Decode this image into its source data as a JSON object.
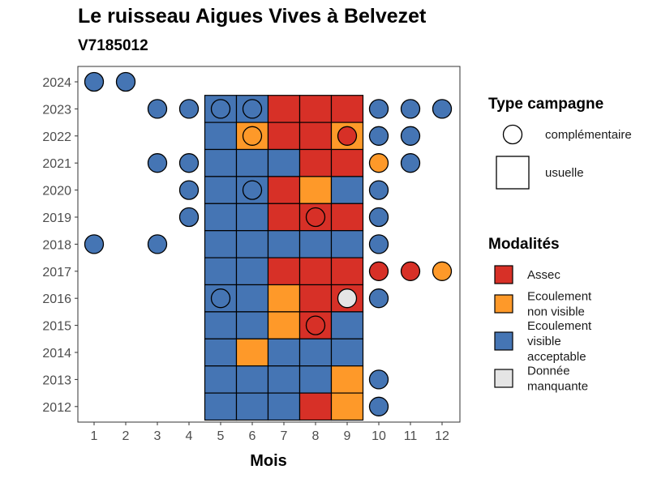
{
  "chart_data": {
    "type": "heatmap",
    "title": "Le ruisseau Aigues Vives à Belvezet",
    "subtitle": "V7185012",
    "xlabel": "Mois",
    "ylabel": "",
    "x_ticks": [
      "1",
      "2",
      "3",
      "4",
      "5",
      "6",
      "7",
      "8",
      "9",
      "10",
      "11",
      "12"
    ],
    "y_ticks": [
      "2012",
      "2013",
      "2014",
      "2015",
      "2016",
      "2017",
      "2018",
      "2019",
      "2020",
      "2021",
      "2022",
      "2023",
      "2024"
    ],
    "colors": {
      "Assec": "#d73027",
      "Ecoulement non visible": "#fe9929",
      "Ecoulement visible acceptable": "#4575b4",
      "Donnée manquante": "#e5e5e5"
    },
    "legend_type": {
      "title": "Type campagne",
      "items": [
        {
          "key": "complementaire",
          "label": "complémentaire",
          "shape": "circle"
        },
        {
          "key": "usuelle",
          "label": "usuelle",
          "shape": "square"
        }
      ]
    },
    "legend_modalites": {
      "title": "Modalités",
      "items": [
        {
          "key": "Assec",
          "lines": [
            "Assec"
          ]
        },
        {
          "key": "Ecoulement non visible",
          "lines": [
            "Ecoulement",
            "non visible"
          ]
        },
        {
          "key": "Ecoulement visible acceptable",
          "lines": [
            "Ecoulement",
            "visible",
            "acceptable"
          ]
        },
        {
          "key": "Donnée manquante",
          "lines": [
            "Donnée",
            "manquante"
          ]
        }
      ]
    },
    "usuelle": [
      {
        "year": 2023,
        "months": {
          "5": "Ecoulement visible acceptable",
          "6": "Ecoulement visible acceptable",
          "7": "Assec",
          "8": "Assec",
          "9": "Assec"
        }
      },
      {
        "year": 2022,
        "months": {
          "5": "Ecoulement visible acceptable",
          "6": "Ecoulement non visible",
          "7": "Assec",
          "8": "Assec",
          "9": "Ecoulement non visible"
        }
      },
      {
        "year": 2021,
        "months": {
          "5": "Ecoulement visible acceptable",
          "6": "Ecoulement visible acceptable",
          "7": "Ecoulement visible acceptable",
          "8": "Assec",
          "9": "Assec"
        }
      },
      {
        "year": 2020,
        "months": {
          "5": "Ecoulement visible acceptable",
          "6": "Ecoulement visible acceptable",
          "7": "Assec",
          "8": "Ecoulement non visible",
          "9": "Ecoulement visible acceptable"
        }
      },
      {
        "year": 2019,
        "months": {
          "5": "Ecoulement visible acceptable",
          "6": "Ecoulement visible acceptable",
          "7": "Assec",
          "8": "Assec",
          "9": "Assec"
        }
      },
      {
        "year": 2018,
        "months": {
          "5": "Ecoulement visible acceptable",
          "6": "Ecoulement visible acceptable",
          "7": "Ecoulement visible acceptable",
          "8": "Ecoulement visible acceptable",
          "9": "Ecoulement visible acceptable"
        }
      },
      {
        "year": 2017,
        "months": {
          "5": "Ecoulement visible acceptable",
          "6": "Ecoulement visible acceptable",
          "7": "Assec",
          "8": "Assec",
          "9": "Assec"
        }
      },
      {
        "year": 2016,
        "months": {
          "5": "Ecoulement visible acceptable",
          "6": "Ecoulement visible acceptable",
          "7": "Ecoulement non visible",
          "8": "Assec",
          "9": "Assec"
        }
      },
      {
        "year": 2015,
        "months": {
          "5": "Ecoulement visible acceptable",
          "6": "Ecoulement visible acceptable",
          "7": "Ecoulement non visible",
          "8": "Assec",
          "9": "Ecoulement visible acceptable"
        }
      },
      {
        "year": 2014,
        "months": {
          "5": "Ecoulement visible acceptable",
          "6": "Ecoulement non visible",
          "7": "Ecoulement visible acceptable",
          "8": "Ecoulement visible acceptable",
          "9": "Ecoulement visible acceptable"
        }
      },
      {
        "year": 2013,
        "months": {
          "5": "Ecoulement visible acceptable",
          "6": "Ecoulement visible acceptable",
          "7": "Ecoulement visible acceptable",
          "8": "Ecoulement visible acceptable",
          "9": "Ecoulement non visible"
        }
      },
      {
        "year": 2012,
        "months": {
          "5": "Ecoulement visible acceptable",
          "6": "Ecoulement visible acceptable",
          "7": "Ecoulement visible acceptable",
          "8": "Assec",
          "9": "Ecoulement non visible"
        }
      }
    ],
    "complementaire": [
      {
        "year": 2024,
        "months": {
          "1": "Ecoulement visible acceptable",
          "2": "Ecoulement visible acceptable"
        }
      },
      {
        "year": 2023,
        "months": {
          "3": "Ecoulement visible acceptable",
          "4": "Ecoulement visible acceptable",
          "5": "Ecoulement visible acceptable",
          "6": "Ecoulement visible acceptable",
          "10": "Ecoulement visible acceptable",
          "11": "Ecoulement visible acceptable",
          "12": "Ecoulement visible acceptable"
        }
      },
      {
        "year": 2022,
        "months": {
          "6": "Ecoulement non visible",
          "9": "Assec",
          "10": "Ecoulement visible acceptable",
          "11": "Ecoulement visible acceptable"
        }
      },
      {
        "year": 2021,
        "months": {
          "3": "Ecoulement visible acceptable",
          "4": "Ecoulement visible acceptable",
          "10": "Ecoulement non visible",
          "11": "Ecoulement visible acceptable"
        }
      },
      {
        "year": 2020,
        "months": {
          "4": "Ecoulement visible acceptable",
          "6": "Ecoulement visible acceptable",
          "10": "Ecoulement visible acceptable"
        }
      },
      {
        "year": 2019,
        "months": {
          "4": "Ecoulement visible acceptable",
          "8": "Assec",
          "10": "Ecoulement visible acceptable"
        }
      },
      {
        "year": 2018,
        "months": {
          "1": "Ecoulement visible acceptable",
          "3": "Ecoulement visible acceptable",
          "10": "Ecoulement visible acceptable"
        }
      },
      {
        "year": 2017,
        "months": {
          "10": "Assec",
          "11": "Assec",
          "12": "Ecoulement non visible"
        }
      },
      {
        "year": 2016,
        "months": {
          "5": "Ecoulement visible acceptable",
          "9": "Donnée manquante",
          "10": "Ecoulement visible acceptable"
        }
      },
      {
        "year": 2015,
        "months": {
          "8": "Assec"
        }
      },
      {
        "year": 2013,
        "months": {
          "10": "Ecoulement visible acceptable"
        }
      },
      {
        "year": 2012,
        "months": {
          "10": "Ecoulement visible acceptable"
        }
      }
    ]
  }
}
